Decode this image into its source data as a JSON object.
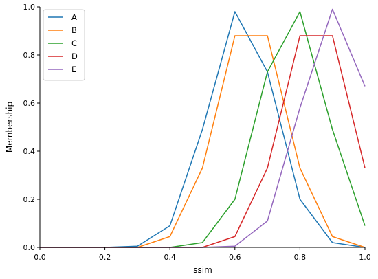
{
  "chart_data": {
    "type": "line",
    "xlabel": "ssim",
    "ylabel": "Membership",
    "xlim": [
      0.0,
      1.0
    ],
    "ylim": [
      0.0,
      1.0
    ],
    "x_ticks": [
      "0.0",
      "0.2",
      "0.4",
      "0.6",
      "0.8",
      "1.0"
    ],
    "y_ticks": [
      "0.0",
      "0.2",
      "0.4",
      "0.6",
      "0.8",
      "1.0"
    ],
    "grid": false,
    "legend_position": "top-left",
    "x": [
      0.0,
      0.1,
      0.2,
      0.3,
      0.4,
      0.5,
      0.6,
      0.7,
      0.8,
      0.9,
      1.0
    ],
    "series": [
      {
        "name": "A",
        "color": "#1f77b4",
        "values": [
          0.0,
          0.0,
          0.0,
          0.005,
          0.09,
          0.49,
          0.98,
          0.73,
          0.2,
          0.02,
          0.0
        ]
      },
      {
        "name": "B",
        "color": "#ff7f0e",
        "values": [
          0.0,
          0.0,
          0.0,
          0.0,
          0.045,
          0.33,
          0.88,
          0.88,
          0.33,
          0.045,
          0.0
        ]
      },
      {
        "name": "C",
        "color": "#2ca02c",
        "values": [
          0.0,
          0.0,
          0.0,
          0.0,
          0.0,
          0.02,
          0.2,
          0.73,
          0.98,
          0.49,
          0.09
        ]
      },
      {
        "name": "D",
        "color": "#d62728",
        "values": [
          0.0,
          0.0,
          0.0,
          0.0,
          0.0,
          0.0,
          0.045,
          0.33,
          0.88,
          0.88,
          0.33
        ]
      },
      {
        "name": "E",
        "color": "#9467bd",
        "values": [
          0.0,
          0.0,
          0.0,
          0.0,
          0.0,
          0.0,
          0.005,
          0.11,
          0.58,
          0.99,
          0.67
        ]
      }
    ]
  }
}
